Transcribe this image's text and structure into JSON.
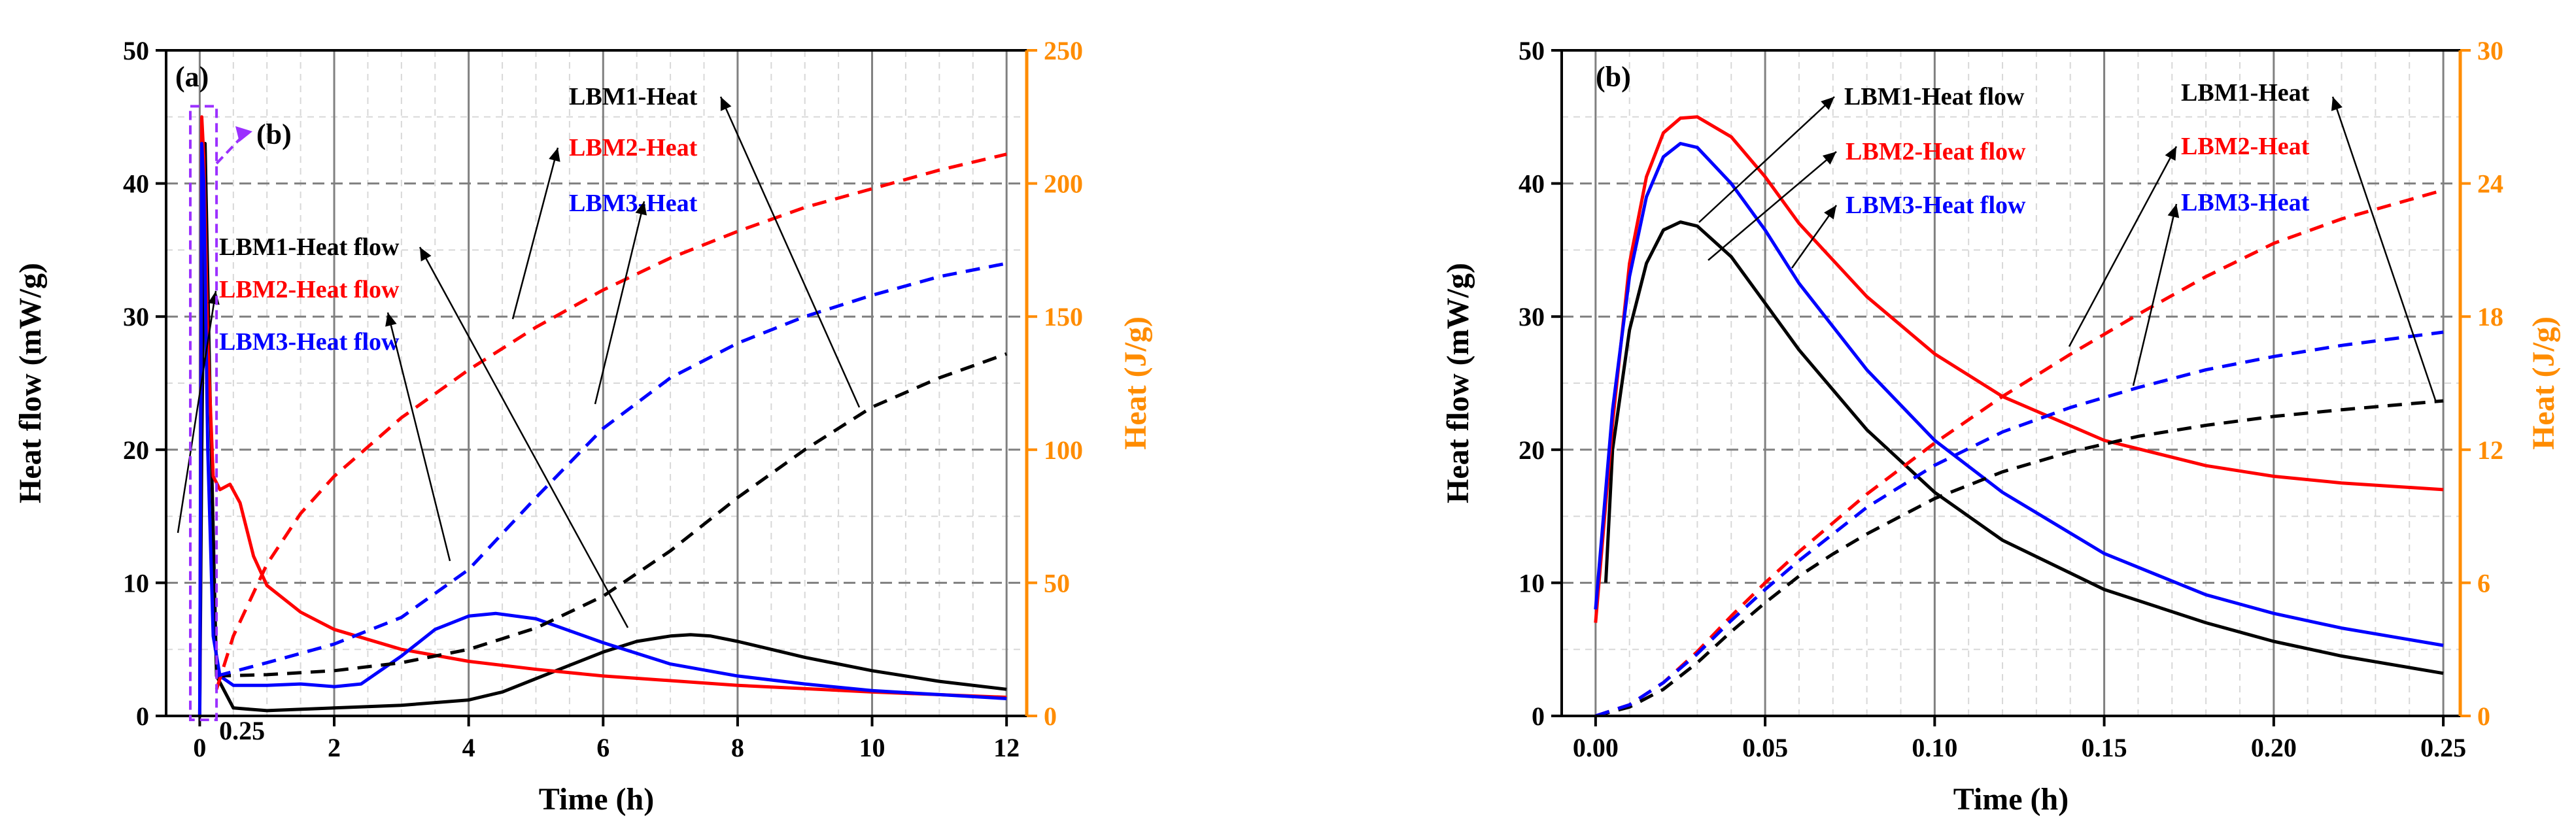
{
  "chart_data": [
    {
      "panel_label": "(a)",
      "type": "line",
      "xlabel": "Time (h)",
      "ylabel": "Heat flow (mW/g)",
      "y2label": "Heat (J/g)",
      "xlim": [
        -0.5,
        12.3
      ],
      "ylim": [
        0,
        50
      ],
      "y2lim": [
        0,
        250
      ],
      "x_ticks": [
        0,
        2,
        4,
        6,
        8,
        10,
        12
      ],
      "x_tick_labels": [
        "0",
        "2",
        "4",
        "6",
        "8",
        "10",
        "12"
      ],
      "y_ticks": [
        0,
        10,
        20,
        30,
        40,
        50
      ],
      "y_tick_labels": [
        "0",
        "10",
        "20",
        "30",
        "40",
        "50"
      ],
      "y2_ticks": [
        0,
        50,
        100,
        150,
        200,
        250
      ],
      "y2_tick_labels": [
        "0",
        "50",
        "100",
        "150",
        "200",
        "250"
      ],
      "extra_tick_label": "0.25",
      "inset_pointer_label": "(b)",
      "series": [
        {
          "name": "LBM1-Heat flow",
          "axis": "left",
          "color": "#000000",
          "style": "solid",
          "x": [
            0.0,
            0.03,
            0.08,
            0.15,
            0.25,
            0.5,
            1,
            2,
            3,
            4,
            4.5,
            5,
            5.5,
            6,
            6.5,
            7,
            7.3,
            7.6,
            8,
            8.5,
            9,
            10,
            11,
            12
          ],
          "y": [
            0,
            20,
            43,
            25,
            3,
            0.6,
            0.4,
            0.6,
            0.8,
            1.2,
            1.8,
            2.8,
            3.8,
            4.8,
            5.6,
            6.0,
            6.1,
            6.0,
            5.6,
            5.0,
            4.4,
            3.4,
            2.6,
            2.0
          ]
        },
        {
          "name": "LBM2-Heat flow",
          "axis": "left",
          "color": "#ff0000",
          "style": "solid",
          "x": [
            0.0,
            0.03,
            0.06,
            0.12,
            0.2,
            0.3,
            0.45,
            0.6,
            0.8,
            1.0,
            1.5,
            2,
            3,
            4,
            5,
            6,
            8,
            10,
            12
          ],
          "y": [
            0,
            45,
            42,
            28,
            18,
            17.0,
            17.4,
            16,
            12,
            9.8,
            7.8,
            6.5,
            5.0,
            4.1,
            3.5,
            3.0,
            2.3,
            1.8,
            1.4
          ]
        },
        {
          "name": "LBM3-Heat flow",
          "axis": "left",
          "color": "#0000ff",
          "style": "solid",
          "x": [
            0.0,
            0.03,
            0.06,
            0.12,
            0.2,
            0.3,
            0.5,
            1,
            1.5,
            2,
            2.4,
            3,
            3.5,
            4,
            4.4,
            5,
            6,
            7,
            8,
            9,
            10,
            11,
            12
          ],
          "y": [
            0,
            43,
            40,
            20,
            6,
            3,
            2.3,
            2.3,
            2.4,
            2.2,
            2.4,
            4.5,
            6.5,
            7.5,
            7.7,
            7.3,
            5.5,
            3.9,
            3.0,
            2.4,
            1.9,
            1.6,
            1.3
          ]
        },
        {
          "name": "LBM1-Heat",
          "axis": "right",
          "color": "#000000",
          "style": "dashed",
          "x": [
            0.25,
            1,
            2,
            3,
            4,
            5,
            6,
            7,
            8,
            9,
            10,
            11,
            12
          ],
          "y": [
            15,
            15.5,
            17,
            20,
            25,
            33,
            45,
            62,
            82,
            100,
            116,
            127,
            136
          ]
        },
        {
          "name": "LBM2-Heat",
          "axis": "right",
          "color": "#ff0000",
          "style": "dashed",
          "x": [
            0.25,
            0.5,
            1,
            1.5,
            2,
            3,
            4,
            5,
            6,
            7,
            8,
            9,
            10,
            11,
            12
          ],
          "y": [
            10,
            30,
            57,
            76,
            90,
            112,
            130,
            146,
            160,
            172,
            182,
            191,
            198,
            205,
            211
          ]
        },
        {
          "name": "LBM3-Heat",
          "axis": "right",
          "color": "#0000ff",
          "style": "dashed",
          "x": [
            0.25,
            1,
            2,
            3,
            4,
            5,
            6,
            7,
            8,
            9,
            10,
            11,
            12
          ],
          "y": [
            15,
            20,
            27,
            37,
            55,
            82,
            108,
            127,
            140,
            150,
            158,
            165,
            170
          ]
        }
      ],
      "annotations": [
        {
          "text": "LBM1-Heat",
          "color": "#000000"
        },
        {
          "text": "LBM2-Heat",
          "color": "#ff0000"
        },
        {
          "text": "LBM3-Heat",
          "color": "#0000ff"
        },
        {
          "text": "LBM1-Heat flow",
          "color": "#000000"
        },
        {
          "text": "LBM2-Heat flow",
          "color": "#ff0000"
        },
        {
          "text": "LBM3-Heat flow",
          "color": "#0000ff"
        }
      ]
    },
    {
      "panel_label": "(b)",
      "type": "line",
      "xlabel": "Time (h)",
      "ylabel": "Heat flow (mW/g)",
      "y2label": "Heat (J/g)",
      "xlim": [
        -0.01,
        0.255
      ],
      "ylim": [
        0,
        50
      ],
      "y2lim": [
        0,
        30
      ],
      "x_ticks": [
        0,
        0.05,
        0.1,
        0.15,
        0.2,
        0.25
      ],
      "x_tick_labels": [
        "0.00",
        "0.05",
        "0.10",
        "0.15",
        "0.20",
        "0.25"
      ],
      "y_ticks": [
        0,
        10,
        20,
        30,
        40,
        50
      ],
      "y_tick_labels": [
        "0",
        "10",
        "20",
        "30",
        "40",
        "50"
      ],
      "y2_ticks": [
        0,
        6,
        12,
        18,
        24,
        30
      ],
      "y2_tick_labels": [
        "0",
        "6",
        "12",
        "18",
        "24",
        "30"
      ],
      "series": [
        {
          "name": "LBM1-Heat flow",
          "axis": "left",
          "color": "#000000",
          "style": "solid",
          "x": [
            0.003,
            0.005,
            0.01,
            0.015,
            0.02,
            0.025,
            0.03,
            0.04,
            0.05,
            0.06,
            0.08,
            0.1,
            0.12,
            0.15,
            0.18,
            0.2,
            0.22,
            0.25
          ],
          "y": [
            10,
            20,
            29,
            34,
            36.5,
            37.1,
            36.8,
            34.5,
            31,
            27.5,
            21.5,
            16.8,
            13.2,
            9.5,
            7.0,
            5.6,
            4.5,
            3.2
          ]
        },
        {
          "name": "LBM2-Heat flow",
          "axis": "left",
          "color": "#ff0000",
          "style": "solid",
          "x": [
            0.0,
            0.005,
            0.01,
            0.015,
            0.02,
            0.025,
            0.03,
            0.04,
            0.05,
            0.06,
            0.08,
            0.1,
            0.12,
            0.15,
            0.18,
            0.2,
            0.22,
            0.25
          ],
          "y": [
            7,
            22,
            34,
            40.5,
            43.8,
            44.9,
            45,
            43.5,
            40.5,
            37,
            31.5,
            27.2,
            24,
            20.7,
            18.8,
            18,
            17.5,
            17
          ]
        },
        {
          "name": "LBM3-Heat flow",
          "axis": "left",
          "color": "#0000ff",
          "style": "solid",
          "x": [
            0.0,
            0.005,
            0.01,
            0.015,
            0.02,
            0.025,
            0.03,
            0.04,
            0.05,
            0.06,
            0.08,
            0.1,
            0.12,
            0.15,
            0.18,
            0.2,
            0.22,
            0.25
          ],
          "y": [
            8,
            23,
            33,
            39,
            42,
            43,
            42.7,
            40,
            36.5,
            32.5,
            26,
            20.7,
            16.8,
            12.2,
            9.1,
            7.7,
            6.6,
            5.3
          ]
        },
        {
          "name": "LBM1-Heat",
          "axis": "right",
          "color": "#000000",
          "style": "dashed",
          "x": [
            0.0,
            0.01,
            0.02,
            0.03,
            0.04,
            0.05,
            0.06,
            0.07,
            0.08,
            0.1,
            0.12,
            0.14,
            0.16,
            0.18,
            0.2,
            0.22,
            0.25
          ],
          "y": [
            0,
            0.4,
            1.2,
            2.4,
            3.8,
            5.1,
            6.3,
            7.3,
            8.2,
            9.8,
            11.0,
            11.9,
            12.6,
            13.1,
            13.5,
            13.8,
            14.2
          ]
        },
        {
          "name": "LBM2-Heat",
          "axis": "right",
          "color": "#ff0000",
          "style": "dashed",
          "x": [
            0.0,
            0.01,
            0.02,
            0.03,
            0.04,
            0.05,
            0.06,
            0.08,
            0.1,
            0.12,
            0.14,
            0.16,
            0.18,
            0.2,
            0.22,
            0.25
          ],
          "y": [
            0,
            0.5,
            1.5,
            2.9,
            4.5,
            6.0,
            7.4,
            10.0,
            12.3,
            14.4,
            16.3,
            18.1,
            19.8,
            21.3,
            22.4,
            23.7
          ]
        },
        {
          "name": "LBM3-Heat",
          "axis": "right",
          "color": "#0000ff",
          "style": "dashed",
          "x": [
            0.0,
            0.01,
            0.02,
            0.03,
            0.04,
            0.05,
            0.06,
            0.08,
            0.1,
            0.12,
            0.14,
            0.16,
            0.18,
            0.2,
            0.22,
            0.25
          ],
          "y": [
            0,
            0.5,
            1.5,
            2.8,
            4.3,
            5.7,
            7.0,
            9.4,
            11.3,
            12.8,
            13.9,
            14.8,
            15.6,
            16.2,
            16.7,
            17.3
          ]
        }
      ],
      "annotations": [
        {
          "text": "LBM1-Heat flow",
          "color": "#000000"
        },
        {
          "text": "LBM2-Heat flow",
          "color": "#ff0000"
        },
        {
          "text": "LBM3-Heat flow",
          "color": "#0000ff"
        },
        {
          "text": "LBM1-Heat",
          "color": "#000000"
        },
        {
          "text": "LBM2-Heat",
          "color": "#ff0000"
        },
        {
          "text": "LBM3-Heat",
          "color": "#0000ff"
        }
      ]
    }
  ],
  "colors": {
    "right_axis": "#ff8c00",
    "inset_box": "#9b30ff",
    "grid_minor": "#d8d8d8",
    "grid_major": "#808080"
  }
}
